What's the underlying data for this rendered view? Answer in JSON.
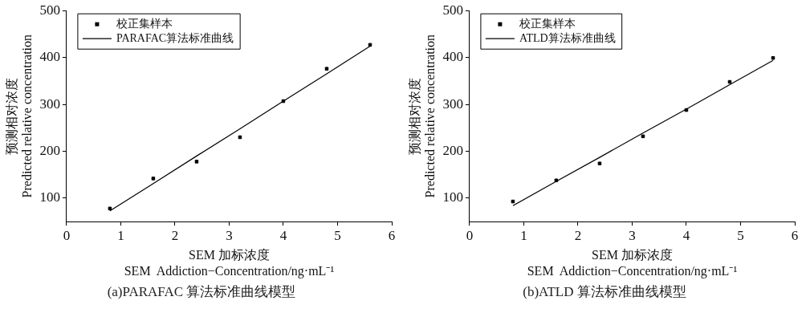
{
  "chart_data": [
    {
      "type": "scatter",
      "xlabel": "SEM 加标浓度\nSEM  Addiction−Concentration/ng·mL⁻¹",
      "ylabel": "预测相对浓度\nPredicted relative concentration",
      "xlim": [
        0,
        6
      ],
      "xticks": [
        0,
        1,
        2,
        3,
        4,
        5,
        6
      ],
      "ylim": [
        50,
        500
      ],
      "yticks": [
        100,
        200,
        300,
        400,
        500
      ],
      "grid": false,
      "legend": "top left",
      "annotations": [
        "(a)PARAFAC 算法标准曲线模型"
      ],
      "x": [
        0.8,
        1.6,
        2.4,
        3.2,
        4.0,
        4.8,
        5.6
      ],
      "series": [
        {
          "name": "校正集样本",
          "color": "#000000",
          "marker": "square",
          "values": [
            78,
            142,
            178,
            230,
            307,
            376,
            427
          ]
        },
        {
          "name": "PARAFAC算法标准曲线",
          "type": "line",
          "color": "#000000",
          "values": [
            73,
            131,
            190,
            248,
            307,
            365,
            424
          ]
        }
      ]
    },
    {
      "type": "scatter",
      "xlabel": "SEM 加标浓度\nSEM  Addiction−Concentration/ng·mL⁻¹",
      "ylabel": "预测相对浓度\nPredicted relative concentration",
      "xlim": [
        0,
        6
      ],
      "xticks": [
        0,
        1,
        2,
        3,
        4,
        5,
        6
      ],
      "ylim": [
        50,
        500
      ],
      "yticks": [
        100,
        200,
        300,
        400,
        500
      ],
      "grid": false,
      "legend": "top left",
      "annotations": [
        "(b)ATLD 算法标准曲线模型"
      ],
      "x": [
        0.8,
        1.6,
        2.4,
        3.2,
        4.0,
        4.8,
        5.6
      ],
      "series": [
        {
          "name": "校正集样本",
          "color": "#000000",
          "marker": "square",
          "values": [
            93,
            138,
            174,
            232,
            288,
            348,
            399
          ]
        },
        {
          "name": "ATLD算法标准曲线",
          "type": "line",
          "color": "#000000",
          "values": [
            84,
            136,
            187,
            239,
            290,
            342,
            394
          ]
        }
      ]
    }
  ]
}
